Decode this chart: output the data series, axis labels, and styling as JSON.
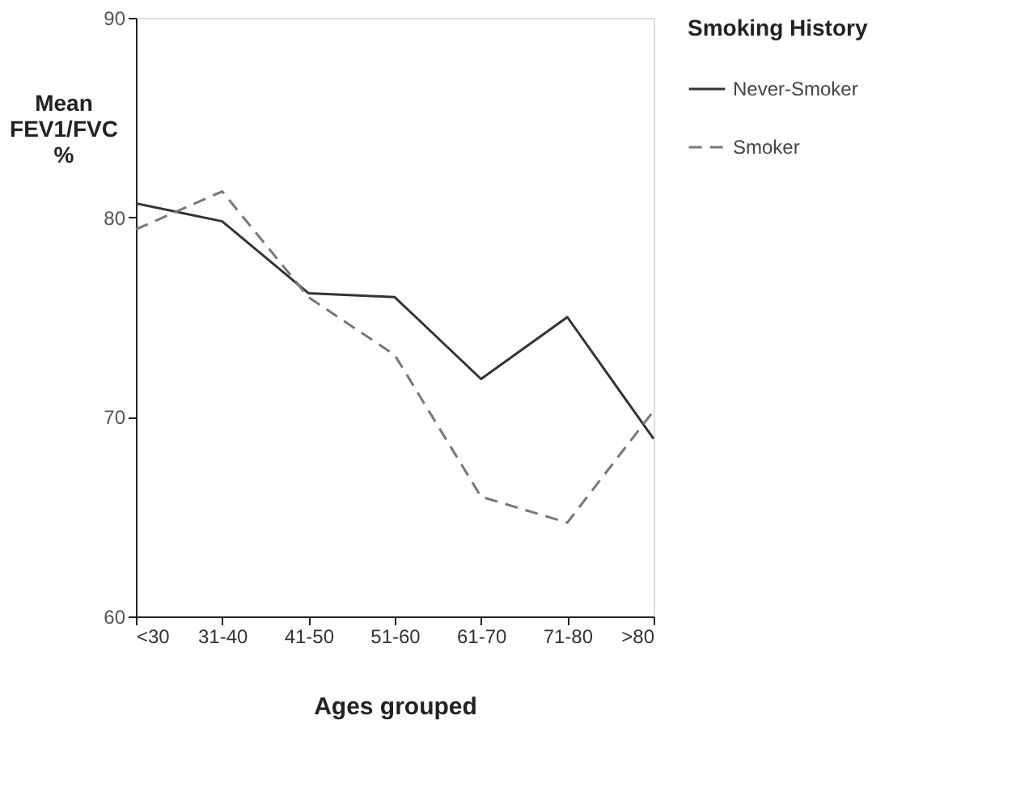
{
  "chart_data": {
    "type": "line",
    "xlabel": "Ages grouped",
    "ylabel": "Mean FEV1/FVC %",
    "legend_title": "Smoking History",
    "categories": [
      "<30",
      "31-40",
      "41-50",
      "51-60",
      "61-70",
      "71-80",
      ">80"
    ],
    "series": [
      {
        "name": "Never-Smoker",
        "color": "#333333",
        "line_style": "solid",
        "values": [
          80.7,
          79.8,
          76.2,
          76.0,
          71.9,
          75.0,
          68.9
        ]
      },
      {
        "name": "Smoker",
        "color": "#777777",
        "line_style": "dashed",
        "values": [
          79.4,
          81.3,
          76.0,
          73.1,
          66.0,
          64.7,
          70.3
        ]
      }
    ],
    "ylim": [
      60,
      90
    ],
    "yticks": [
      60,
      70,
      80,
      90
    ],
    "grid": false,
    "legend": "right",
    "marker": "none"
  }
}
